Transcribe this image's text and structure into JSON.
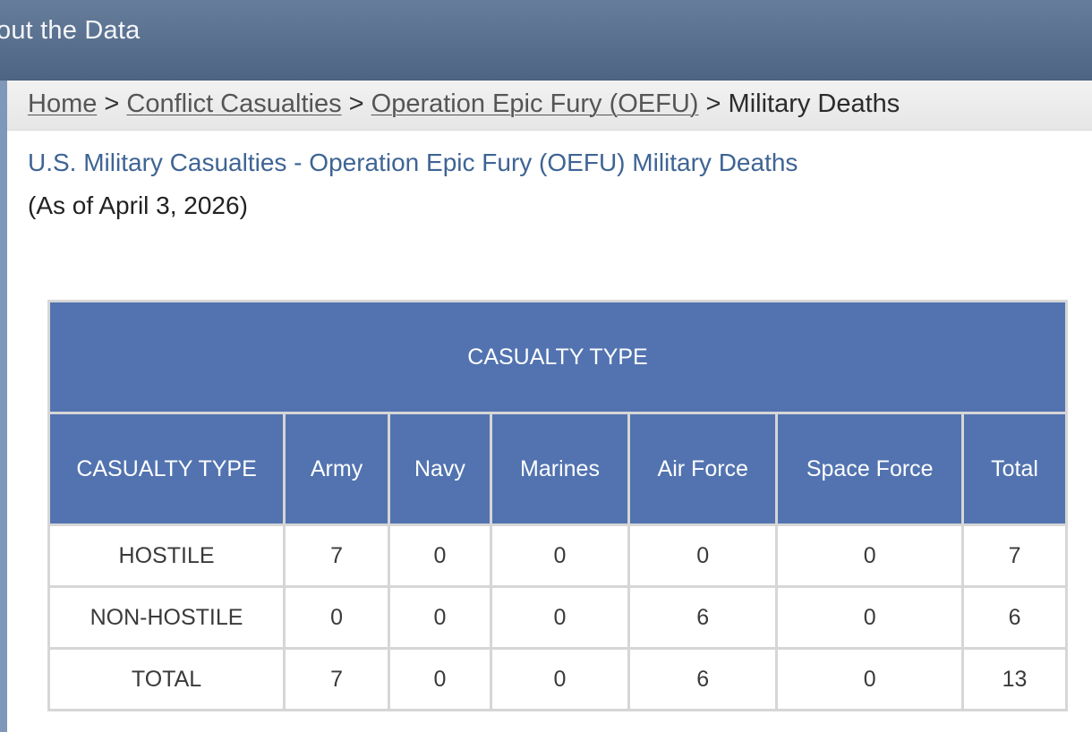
{
  "header": {
    "title": "out the Data"
  },
  "breadcrumb": {
    "home": "Home",
    "sep": ">",
    "conflict": "Conflict Casualties",
    "operation": "Operation Epic Fury (OEFU)",
    "current": "Military Deaths"
  },
  "page": {
    "title": "U.S. Military Casualties - Operation Epic Fury (OEFU) Military Deaths",
    "subtitle": "(As of April 3, 2026)"
  },
  "table": {
    "group_header": "CASUALTY TYPE",
    "columns": [
      "CASUALTY TYPE",
      "Army",
      "Navy",
      "Marines",
      "Air Force",
      "Space Force",
      "Total"
    ],
    "rows": [
      [
        "HOSTILE",
        "7",
        "0",
        "0",
        "0",
        "0",
        "7"
      ],
      [
        "NON-HOSTILE",
        "0",
        "0",
        "0",
        "6",
        "0",
        "6"
      ],
      [
        "TOTAL",
        "7",
        "0",
        "0",
        "6",
        "0",
        "13"
      ]
    ]
  },
  "colors": {
    "header_bg": "#5273b0",
    "title_text": "#3e6494",
    "topbar": "#56708f"
  }
}
